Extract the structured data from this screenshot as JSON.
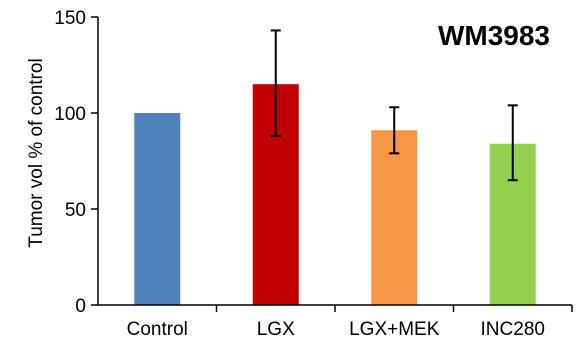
{
  "chart_data": {
    "type": "bar",
    "title": "WM3983",
    "xlabel": "",
    "ylabel": "Tumor vol % of control",
    "ylim": [
      0,
      150
    ],
    "yticks": [
      0,
      50,
      100,
      150
    ],
    "categories": [
      "Control",
      "LGX",
      "LGX+MEK",
      "INC280"
    ],
    "values": [
      100,
      115,
      91,
      84
    ],
    "error_low": [
      null,
      88,
      79,
      65
    ],
    "error_high": [
      null,
      143,
      103,
      104
    ],
    "colors": [
      "#4f81bd",
      "#c00000",
      "#f79646",
      "#92d050"
    ],
    "grid": false,
    "legend": "none"
  }
}
